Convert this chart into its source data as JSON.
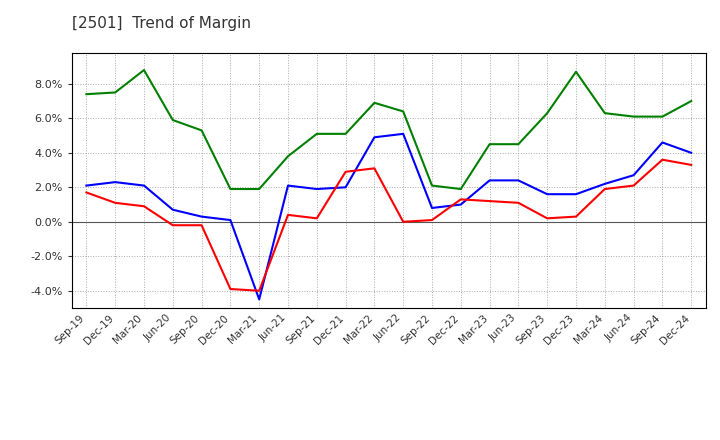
{
  "title": "[2501]  Trend of Margin",
  "x_labels": [
    "Sep-19",
    "Dec-19",
    "Mar-20",
    "Jun-20",
    "Sep-20",
    "Dec-20",
    "Mar-21",
    "Jun-21",
    "Sep-21",
    "Dec-21",
    "Mar-22",
    "Jun-22",
    "Sep-22",
    "Dec-22",
    "Mar-23",
    "Jun-23",
    "Sep-23",
    "Dec-23",
    "Mar-24",
    "Jun-24",
    "Sep-24",
    "Dec-24"
  ],
  "ordinary_income": [
    2.1,
    2.3,
    2.1,
    0.7,
    0.3,
    0.1,
    -4.5,
    2.1,
    1.9,
    2.0,
    4.9,
    5.1,
    0.8,
    1.0,
    2.4,
    2.4,
    1.6,
    1.6,
    2.2,
    2.7,
    4.6,
    4.0
  ],
  "net_income": [
    1.7,
    1.1,
    0.9,
    -0.2,
    -0.2,
    -3.9,
    -4.0,
    0.4,
    0.2,
    2.9,
    3.1,
    0.0,
    0.1,
    1.3,
    1.2,
    1.1,
    0.2,
    0.3,
    1.9,
    2.1,
    3.6,
    3.3
  ],
  "operating_cashflow": [
    7.4,
    7.5,
    8.8,
    5.9,
    5.3,
    1.9,
    1.9,
    3.8,
    5.1,
    5.1,
    6.9,
    6.4,
    2.1,
    1.9,
    4.5,
    4.5,
    6.3,
    8.7,
    6.3,
    6.1,
    6.1,
    7.0
  ],
  "ordinary_income_color": "#0000FF",
  "net_income_color": "#FF0000",
  "operating_cashflow_color": "#008000",
  "ylim": [
    -5.0,
    9.8
  ],
  "yticks": [
    -4.0,
    -2.0,
    0.0,
    2.0,
    4.0,
    6.0,
    8.0
  ],
  "background_color": "#FFFFFF",
  "grid_color": "#AAAAAA",
  "title_color": "#333333",
  "line_width": 1.5
}
